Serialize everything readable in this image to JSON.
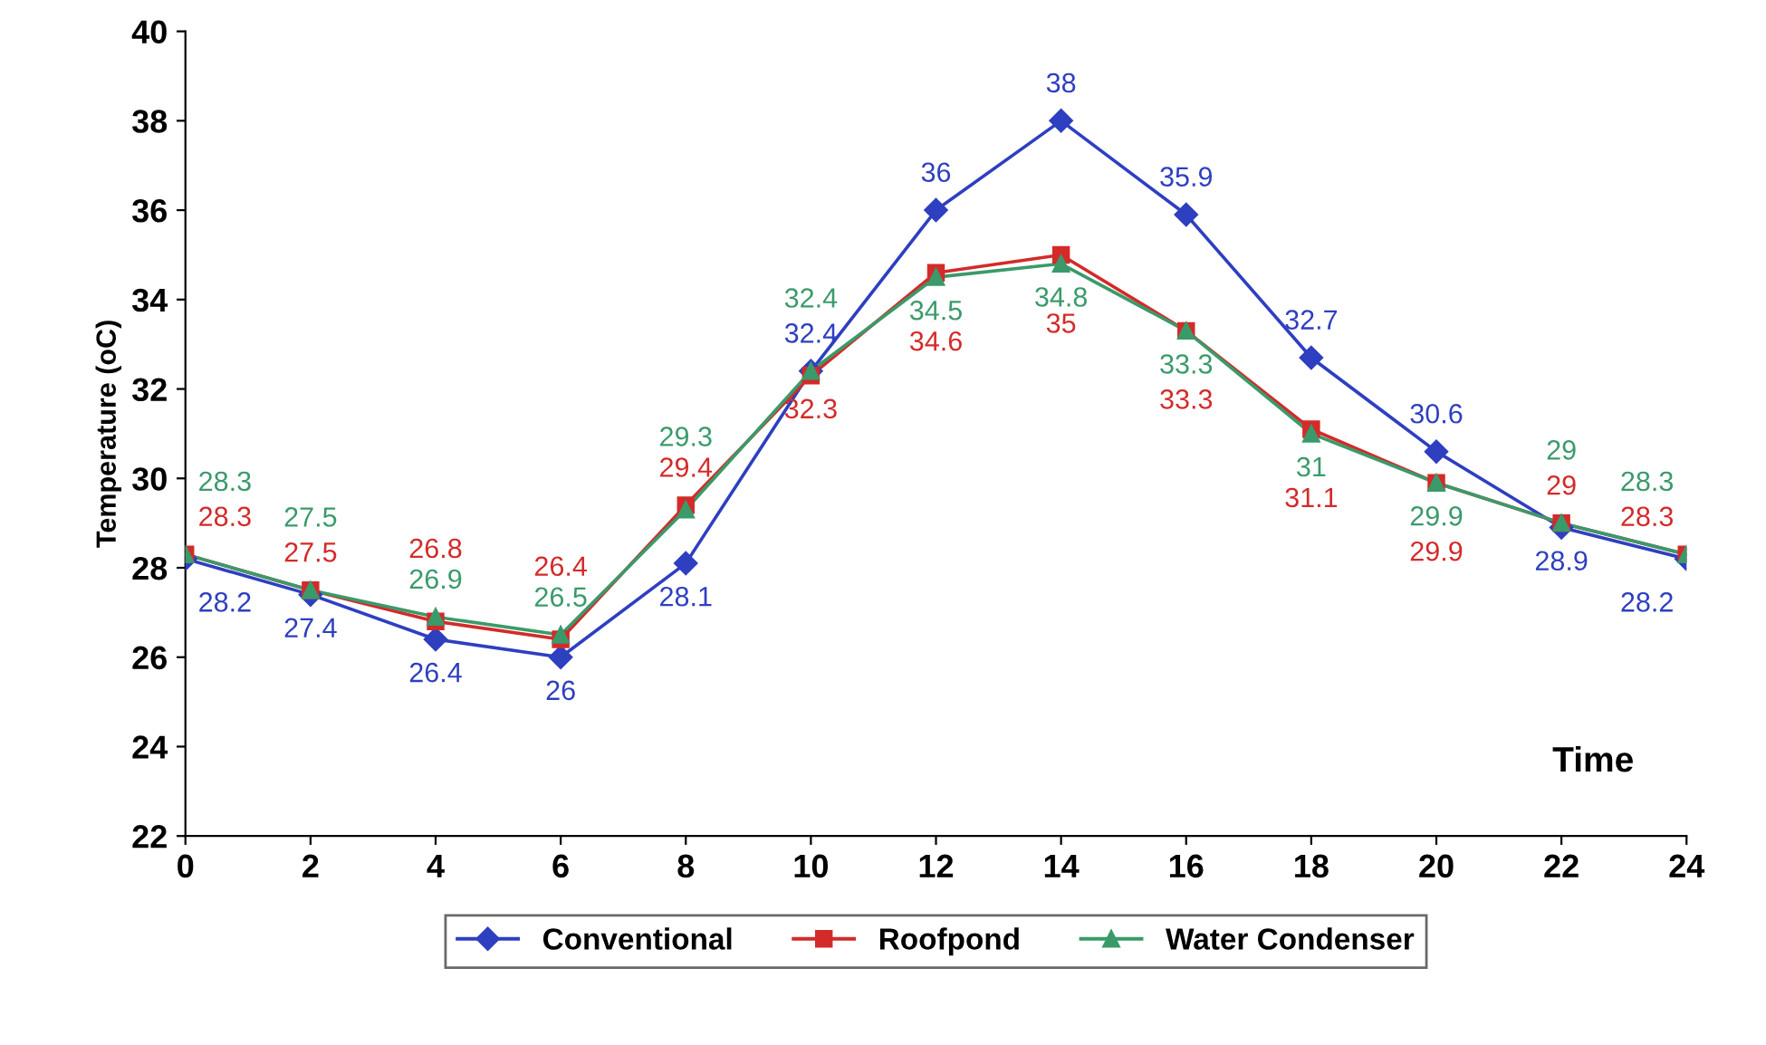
{
  "chart_data": {
    "type": "line",
    "xlabel": "Time",
    "ylabel": "Temperature (oC)",
    "x": [
      0,
      2,
      4,
      6,
      8,
      10,
      12,
      14,
      16,
      18,
      20,
      22,
      24
    ],
    "xlim": [
      0,
      24
    ],
    "xticks": [
      0,
      2,
      4,
      6,
      8,
      10,
      12,
      14,
      16,
      18,
      20,
      22,
      24
    ],
    "ylim": [
      22,
      40
    ],
    "yticks": [
      22,
      24,
      26,
      28,
      30,
      32,
      34,
      36,
      38,
      40
    ],
    "grid": false,
    "legend": "bottom",
    "data_labels": true,
    "series": [
      {
        "name": "Conventional",
        "color": "#2e3fc0",
        "marker": "diamond",
        "values": [
          28.2,
          27.4,
          26.4,
          26,
          28.1,
          32.4,
          36,
          38,
          35.9,
          32.7,
          30.6,
          28.9,
          28.2
        ]
      },
      {
        "name": "Roofpond",
        "color": "#d42a2a",
        "marker": "square",
        "values": [
          28.3,
          27.5,
          26.8,
          26.4,
          29.4,
          32.3,
          34.6,
          35,
          33.3,
          31.1,
          29.9,
          29,
          28.3
        ]
      },
      {
        "name": "Water Condenser",
        "color": "#3a9a6a",
        "marker": "triangle",
        "values": [
          28.3,
          27.5,
          26.9,
          26.5,
          29.3,
          32.4,
          34.5,
          34.8,
          33.3,
          31,
          29.9,
          29,
          28.3
        ]
      }
    ]
  }
}
